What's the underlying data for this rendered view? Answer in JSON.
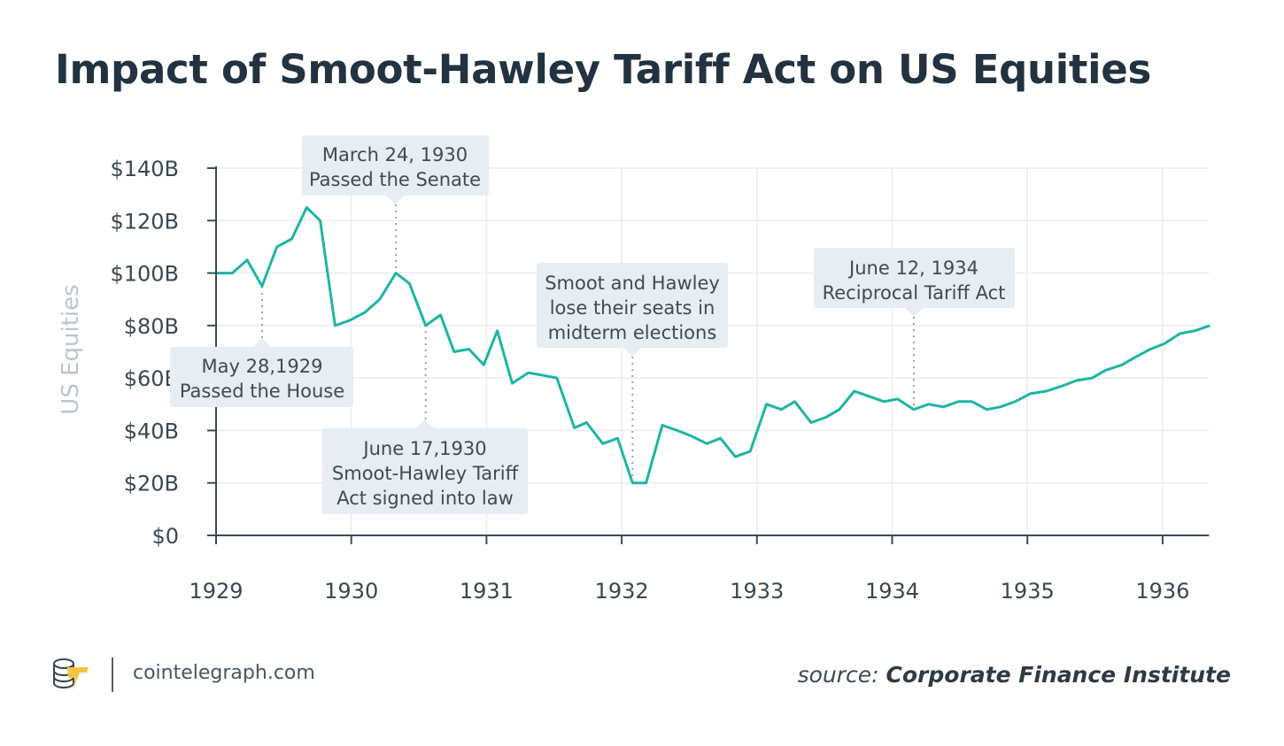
{
  "title": "Impact of Smoot-Hawley Tariff Act on US Equities",
  "footer": {
    "site": "cointelegraph.com",
    "source_prefix": "source:",
    "source_name": "Corporate Finance Institute"
  },
  "chart_data": {
    "type": "line",
    "title": "Impact of Smoot-Hawley Tariff Act on US Equities",
    "xlabel": "",
    "ylabel": "US Equities",
    "xlim": [
      1929,
      1936.35
    ],
    "ylim": [
      0,
      140
    ],
    "x_ticks": [
      "1929",
      "1930",
      "1931",
      "1932",
      "1933",
      "1934",
      "1935",
      "1936"
    ],
    "y_ticks": [
      "$0",
      "$20B",
      "$40B",
      "$60B",
      "$80B",
      "$100B",
      "$120B",
      "$140B"
    ],
    "grid": true,
    "line_color": "#1db5a3",
    "series": [
      {
        "x": [
          1929.0,
          1929.12,
          1929.23,
          1929.34,
          1929.45,
          1929.56,
          1929.67,
          1929.77,
          1929.88,
          1929.99,
          1930.1,
          1930.21,
          1930.33,
          1930.43,
          1930.55,
          1930.66,
          1930.76,
          1930.87,
          1930.98,
          1931.08,
          1931.19,
          1931.31,
          1931.42,
          1931.52,
          1931.65,
          1931.74,
          1931.86,
          1931.97,
          1932.08,
          1932.18,
          1932.3,
          1932.41,
          1932.51,
          1932.63,
          1932.73,
          1932.84,
          1932.95,
          1933.07,
          1933.18,
          1933.28,
          1933.4,
          1933.51,
          1933.61,
          1933.72,
          1933.83,
          1933.94,
          1934.04,
          1934.16,
          1934.27,
          1934.38,
          1934.49,
          1934.59,
          1934.7,
          1934.8,
          1934.91,
          1935.02,
          1935.14,
          1935.26,
          1935.36,
          1935.48,
          1935.58,
          1935.7,
          1935.8,
          1935.91,
          1936.01,
          1936.13,
          1936.24,
          1936.35
        ],
        "values": [
          100,
          100,
          105,
          95,
          110,
          113,
          125,
          120,
          80,
          82,
          85,
          90,
          100,
          96,
          80,
          84,
          70,
          71,
          65,
          78,
          58,
          62,
          61,
          60,
          41,
          43,
          35,
          37,
          20,
          20,
          42,
          40,
          38,
          35,
          37,
          30,
          32,
          50,
          48,
          51,
          43,
          45,
          48,
          55,
          53,
          51,
          52,
          48,
          50,
          49,
          51,
          51,
          48,
          49,
          51,
          54,
          55,
          57,
          59,
          60,
          63,
          65,
          68,
          71,
          73,
          77,
          78,
          80
        ]
      }
    ],
    "annotations": [
      {
        "x": 1929.34,
        "lines": [
          "May 28,1929",
          "Passed the House"
        ]
      },
      {
        "x": 1930.33,
        "lines": [
          "March 24, 1930",
          "Passed the Senate"
        ]
      },
      {
        "x": 1930.55,
        "lines": [
          "June 17,1930",
          "Smoot-Hawley Tariff",
          "Act signed into law"
        ]
      },
      {
        "x": 1932.08,
        "lines": [
          "Smoot and Hawley",
          "lose their seats in",
          "midterm elections"
        ]
      },
      {
        "x": 1934.16,
        "lines": [
          "June 12, 1934",
          "Reciprocal Tariff Act"
        ]
      }
    ]
  }
}
